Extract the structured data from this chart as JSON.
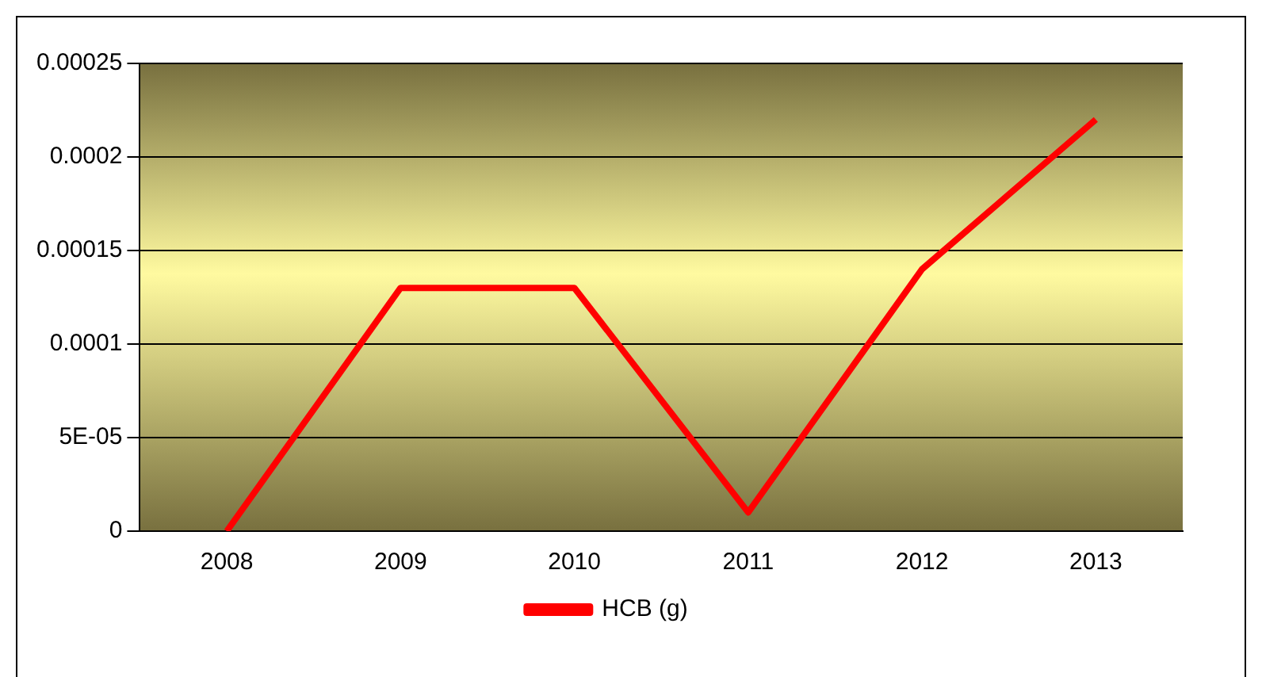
{
  "chart_data": {
    "type": "line",
    "categories": [
      "2008",
      "2009",
      "2010",
      "2011",
      "2012",
      "2013"
    ],
    "series": [
      {
        "name": "HCB (g)",
        "color": "#ff0000",
        "values": [
          0,
          0.00013,
          0.00013,
          1e-05,
          0.00014,
          0.00022
        ]
      }
    ],
    "ylim": [
      0,
      0.00025
    ],
    "yticks": [
      0,
      {
        "value": 5e-05,
        "label": "5E-05"
      },
      0.0001,
      0.00015,
      0.0002,
      0.00025
    ],
    "grid": "y",
    "legend": "bottom",
    "marker": "none",
    "line_style": "solid"
  }
}
